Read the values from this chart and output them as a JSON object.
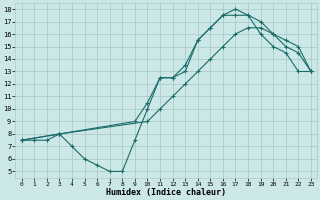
{
  "xlabel": "Humidex (Indice chaleur)",
  "bg_color": "#cce8e6",
  "grid_color": "#aaccca",
  "line_color": "#1a6b6b",
  "marker": "+",
  "xlim": [
    -0.5,
    23.5
  ],
  "ylim": [
    4.5,
    18.5
  ],
  "xticks": [
    0,
    1,
    2,
    3,
    4,
    5,
    6,
    7,
    8,
    9,
    10,
    11,
    12,
    13,
    14,
    15,
    16,
    17,
    18,
    19,
    20,
    21,
    22,
    23
  ],
  "yticks": [
    5,
    6,
    7,
    8,
    9,
    10,
    11,
    12,
    13,
    14,
    15,
    16,
    17,
    18
  ],
  "curve1_x": [
    0,
    1,
    2,
    3,
    4,
    5,
    6,
    7,
    8,
    9,
    10,
    11,
    12,
    13,
    14,
    15,
    16,
    17,
    18,
    19,
    20,
    21,
    22,
    23
  ],
  "curve1_y": [
    7.5,
    7.5,
    7.5,
    8.0,
    7.0,
    6.0,
    5.5,
    5.0,
    5.0,
    7.5,
    10.0,
    12.5,
    12.5,
    13.0,
    15.5,
    16.5,
    17.5,
    17.5,
    17.5,
    16.0,
    15.0,
    14.5,
    13.0,
    13.0
  ],
  "curve2_x": [
    0,
    3,
    9,
    10,
    11,
    12,
    13,
    14,
    15,
    16,
    17,
    18,
    19,
    20,
    21,
    22,
    23
  ],
  "curve2_y": [
    7.5,
    8.0,
    9.0,
    10.5,
    12.5,
    12.5,
    13.5,
    15.5,
    16.5,
    17.5,
    18.0,
    17.5,
    17.0,
    16.0,
    15.0,
    14.5,
    13.0
  ],
  "curve3_x": [
    0,
    3,
    10,
    11,
    12,
    13,
    14,
    15,
    16,
    17,
    18,
    19,
    20,
    21,
    22,
    23
  ],
  "curve3_y": [
    7.5,
    8.0,
    9.0,
    10.0,
    11.0,
    12.0,
    13.0,
    14.0,
    15.0,
    16.0,
    16.5,
    16.5,
    16.0,
    15.5,
    15.0,
    13.0
  ]
}
